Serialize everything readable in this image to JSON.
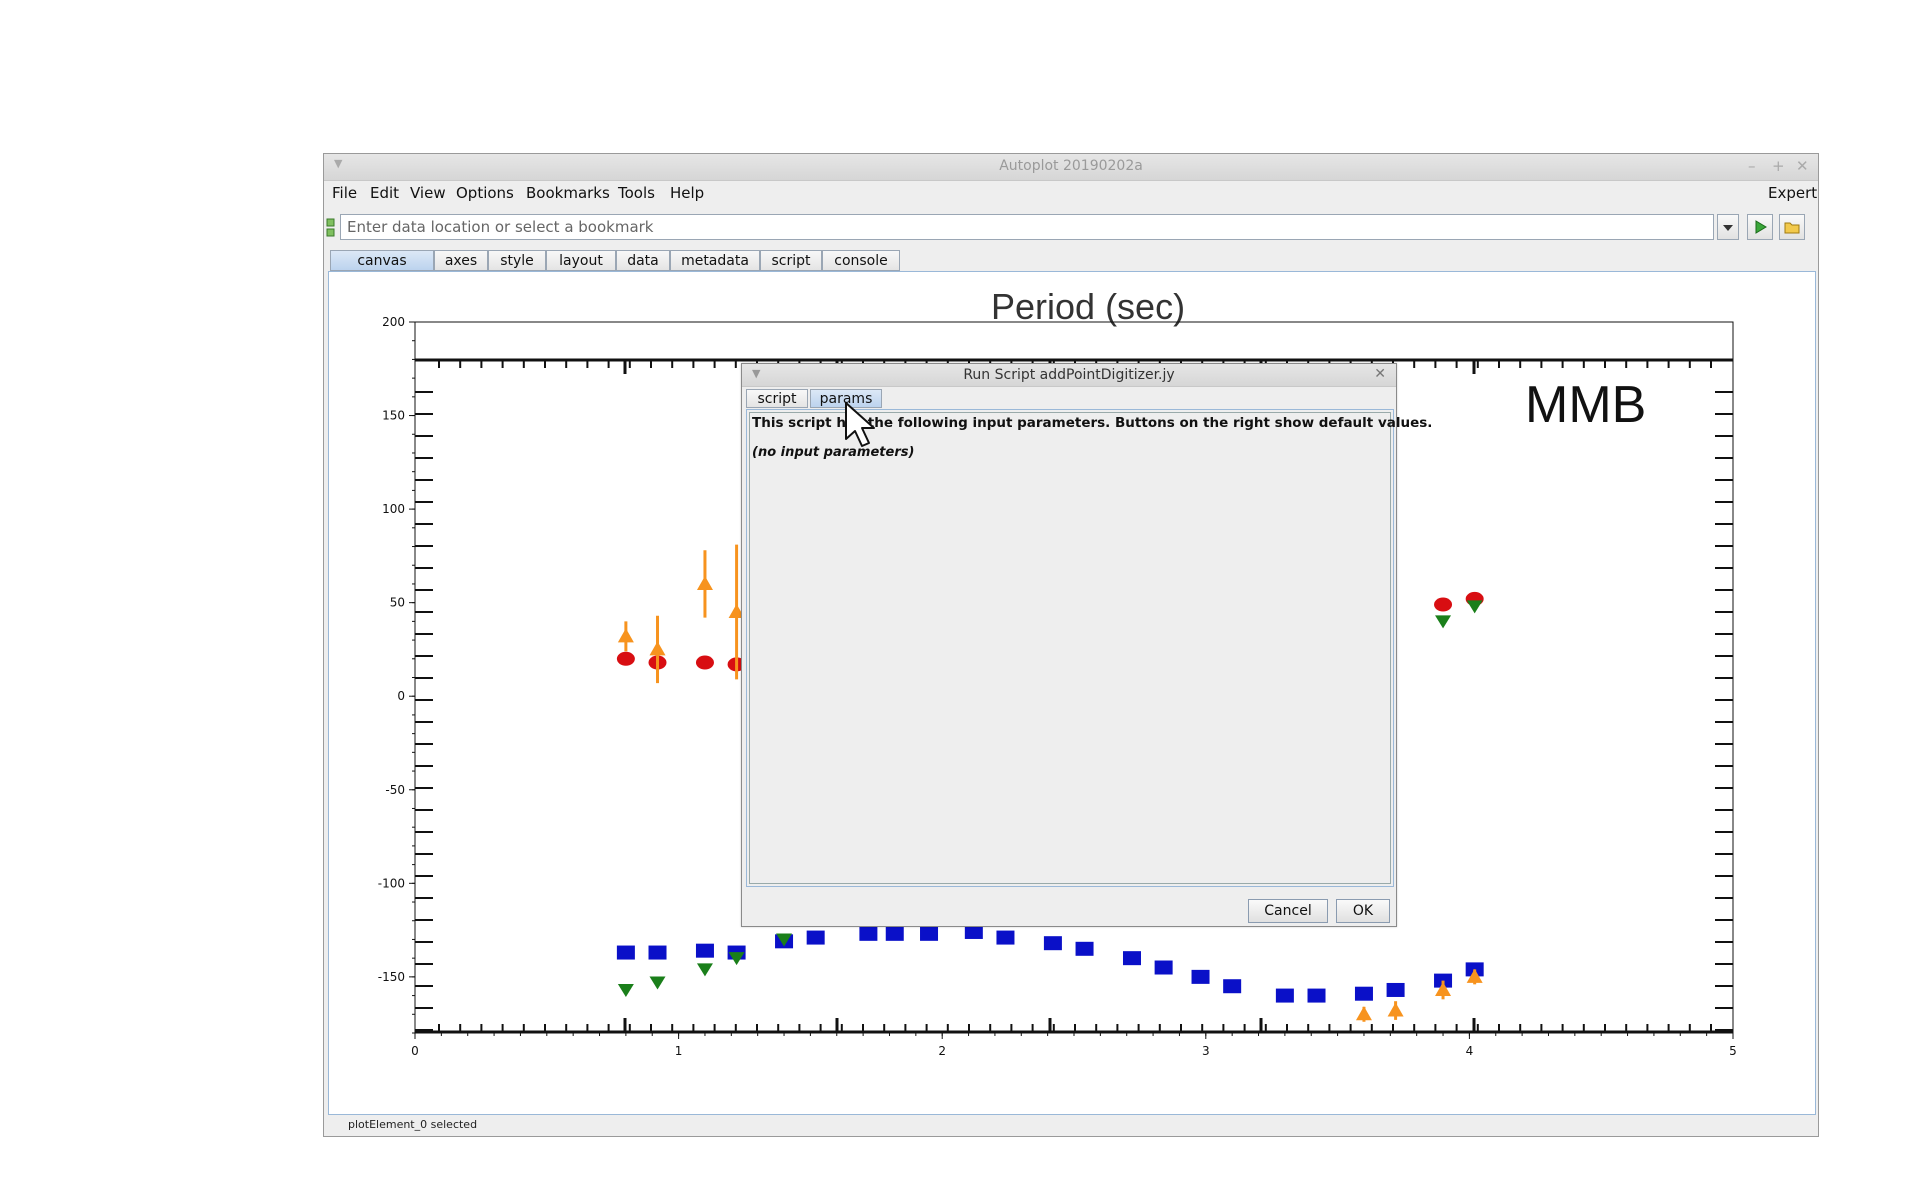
{
  "window": {
    "title": "Autoplot 20190202a",
    "controls": {
      "minimize": "–",
      "maximize": "+",
      "close": "✕"
    }
  },
  "menubar": {
    "items": [
      "File",
      "Edit",
      "View",
      "Options",
      "Bookmarks",
      "Tools",
      "Help"
    ],
    "right_label": "Expert"
  },
  "address": {
    "placeholder": "Enter data location or select a bookmark",
    "value": ""
  },
  "tabs": [
    "canvas",
    "axes",
    "style",
    "layout",
    "data",
    "metadata",
    "script",
    "console"
  ],
  "active_tab": "canvas",
  "status": "plotElement_0 selected",
  "plot": {
    "image_title_text": "Period (sec)",
    "image_label": "MMB",
    "xlim": [
      0,
      5
    ],
    "ylim": [
      -180,
      200
    ],
    "x_ticks": [
      "0",
      "1",
      "2",
      "3",
      "4",
      "5"
    ],
    "y_ticks": [
      "200",
      "150",
      "100",
      "50",
      "0",
      "-50",
      "-100",
      "-150"
    ],
    "colors": {
      "blue": "#0a10c8",
      "red": "#d80e12",
      "orange": "#f7931e",
      "green": "#1a7f1a"
    }
  },
  "dialog": {
    "title": "Run Script addPointDigitizer.jy",
    "tabs": [
      "script",
      "params"
    ],
    "active_tab": "params",
    "description": "This script has the following input parameters.  Buttons on the right show default values.",
    "empty_text": "(no input parameters)",
    "cancel_label": "Cancel",
    "ok_label": "OK"
  }
}
